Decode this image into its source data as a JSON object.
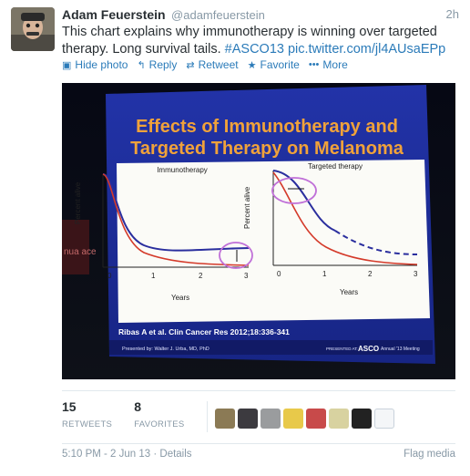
{
  "tweet": {
    "fullname": "Adam Feuerstein",
    "username": "@adamfeuerstein",
    "time": "2h",
    "text_plain": "This chart explains why immunotherapy is winning over targeted therapy. Long survival tails.",
    "hashtag": "#ASCO13",
    "link": "pic.twitter.com/jl4AUsaEPp"
  },
  "actions": [
    {
      "label": "Hide photo",
      "icon": "photo-icon"
    },
    {
      "label": "Reply",
      "icon": "reply-icon"
    },
    {
      "label": "Retweet",
      "icon": "retweet-icon"
    },
    {
      "label": "Favorite",
      "icon": "star-icon"
    },
    {
      "label": "More",
      "icon": "more-icon"
    }
  ],
  "photo": {
    "slide_title_line1": "Effects of Immunotherapy and",
    "slide_title_line2": "Targeted Therapy on Melanoma",
    "panel_left_title": "Immunotherapy",
    "panel_right_title": "Targeted therapy",
    "ylabel": "Percent alive",
    "xlabel": "Years",
    "ticks": [
      "0",
      "1",
      "2",
      "3"
    ],
    "citation": "Ribas A et al. Clin Cancer Res 2012;18:336-341",
    "presented_by": "Presented by: Walter J. Urba, MD, PhD",
    "presented_at": "PRESENTED AT:",
    "asco": "ASCO",
    "meeting": "Annual '13 Meeting",
    "side_text": "nua ace"
  },
  "stats": {
    "retweets_count": "15",
    "retweets_label": "RETWEETS",
    "favorites_count": "8",
    "favorites_label": "FAVORITES"
  },
  "footer": {
    "timestamp": "5:10 PM - 2 Jun 13 · Details",
    "flag": "Flag media"
  },
  "colors": {
    "link": "#2b7bb9",
    "muted": "#8899a6",
    "slide_blue": "#1d2f9e",
    "slide_title": "#f0a23a"
  }
}
